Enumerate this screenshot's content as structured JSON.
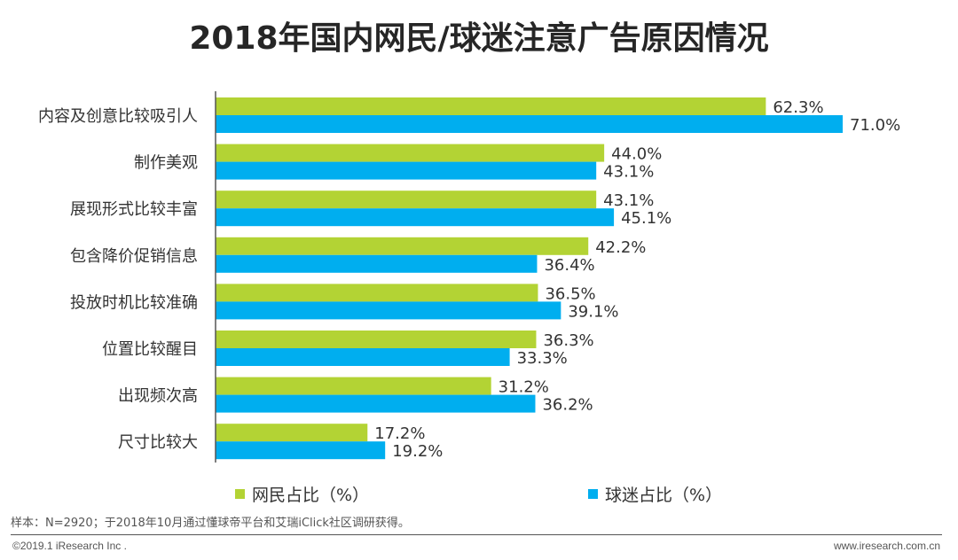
{
  "chart_data": {
    "type": "bar",
    "orientation": "horizontal",
    "title": "2018年国内网民/球迷注意广告原因情况",
    "categories": [
      "内容及创意比较吸引人",
      "制作美观",
      "展现形式比较丰富",
      "包含降价促销信息",
      "投放时机比较准确",
      "位置比较醒目",
      "出现频次高",
      "尺寸比较大"
    ],
    "series": [
      {
        "name": "网民占比（%）",
        "color": "#b3d334",
        "values": [
          62.3,
          44.0,
          43.1,
          42.2,
          36.5,
          36.3,
          31.2,
          17.2
        ]
      },
      {
        "name": "球迷占比（%）",
        "color": "#00aeef",
        "values": [
          71.0,
          43.1,
          45.1,
          36.4,
          39.1,
          33.3,
          36.2,
          19.2
        ]
      }
    ],
    "value_suffix": "%",
    "xlim": [
      0,
      100
    ],
    "grid": false,
    "legend": "bottom"
  },
  "footer": {
    "note": "样本：N=2920；于2018年10月通过懂球帝平台和艾瑞iClick社区调研获得。",
    "copyright": "©2019.1 iResearch Inc .",
    "website": "www.iresearch.com.cn"
  }
}
